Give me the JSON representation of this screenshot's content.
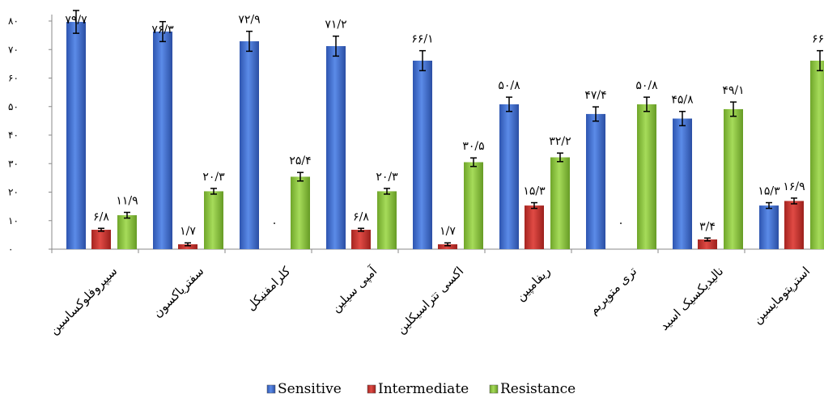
{
  "chart_data": {
    "type": "bar",
    "ylim": [
      0,
      80
    ],
    "y_ticks": [
      "۰",
      "۱۰",
      "۲۰",
      "۳۰",
      "۴۰",
      "۵۰",
      "۶۰",
      "۷۰",
      "۸۰"
    ],
    "categories": [
      "سیپروفلوکساسین",
      "سفتریاکسون",
      "کلرامفنیکل",
      "آمپی سیلین",
      "اکسی تتراسیکلین",
      "ریفامپین",
      "تری متوپریم",
      "نالیدیکسیک اسید",
      "استرپتومایسین"
    ],
    "series": [
      {
        "name": "Sensitive",
        "color": "#3F6FD0",
        "values": [
          79.7,
          76.3,
          72.9,
          71.2,
          66.1,
          50.8,
          47.4,
          45.8,
          15.3
        ],
        "labels": [
          "۷۹/۷",
          "۷۶/۳",
          "۷۲/۹",
          "۷۱/۲",
          "۶۶/۱",
          "۵۰/۸",
          "۴۷/۴",
          "۴۵/۸",
          "۱۵/۳"
        ],
        "errors": [
          4,
          3.5,
          3.5,
          3.5,
          3.5,
          2.5,
          2.5,
          2.5,
          1
        ]
      },
      {
        "name": "Intermediate",
        "color": "#C8302C",
        "values": [
          6.8,
          1.7,
          0,
          6.8,
          1.7,
          15.3,
          0,
          3.4,
          16.9
        ],
        "labels": [
          "۶/۸",
          "۱/۷",
          "۰",
          "۶/۸",
          "۱/۷",
          "۱۵/۳",
          "۰",
          "۳/۴",
          "۱۶/۹"
        ],
        "errors": [
          0.5,
          0.5,
          0,
          0.5,
          0.5,
          1,
          0,
          0.5,
          1
        ]
      },
      {
        "name": "Resistance",
        "color": "#8CC63F",
        "values": [
          11.9,
          20.3,
          25.4,
          20.3,
          30.5,
          32.2,
          50.8,
          49.1,
          66.1
        ],
        "labels": [
          "۱۱/۹",
          "۲۰/۳",
          "۲۵/۴",
          "۲۰/۳",
          "۳۰/۵",
          "۳۲/۲",
          "۵۰/۸",
          "۴۹/۱",
          "۶۶/"
        ],
        "errors": [
          1,
          1,
          1.5,
          1,
          1.5,
          1.5,
          2.5,
          2.5,
          3.5
        ]
      }
    ],
    "legend": {
      "position": "bottom",
      "labels": [
        "Sensitive",
        "Intermediate",
        "Resistance"
      ]
    },
    "grid": false
  }
}
